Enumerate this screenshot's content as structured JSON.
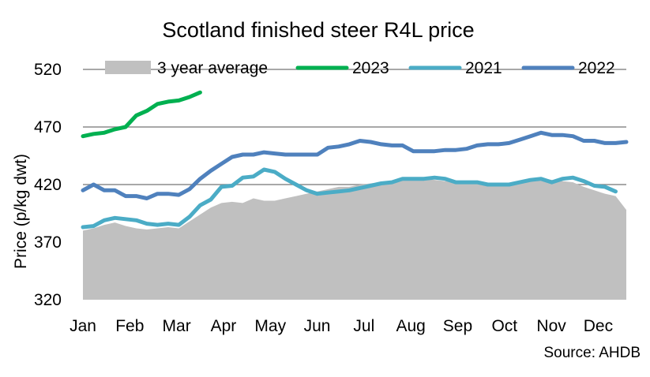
{
  "chart_data": {
    "type": "line",
    "title": "Scotland finished steer R4L price",
    "ylabel": "Price (p/kg dwt)",
    "xlabel": "",
    "ylim": [
      320,
      520
    ],
    "yticks": [
      320,
      370,
      420,
      470,
      520
    ],
    "grid": "horizontal",
    "legend_position": "top",
    "months": [
      "Jan",
      "Feb",
      "Mar",
      "Apr",
      "May",
      "Jun",
      "Jul",
      "Aug",
      "Sep",
      "Oct",
      "Nov",
      "Dec"
    ],
    "source": "Source: AHDB",
    "series": [
      {
        "name": "3 year average",
        "style": "area",
        "color": "#c0c0c0",
        "values": [
          380,
          382,
          385,
          387,
          384,
          382,
          381,
          382,
          383,
          382,
          388,
          394,
          400,
          404,
          405,
          404,
          408,
          406,
          406,
          408,
          410,
          412,
          414,
          416,
          418,
          418,
          420,
          421,
          422,
          423,
          424,
          425,
          425,
          424,
          423,
          423,
          422,
          422,
          420,
          420,
          420,
          422,
          424,
          426,
          424,
          423,
          422,
          418,
          415,
          412,
          410,
          398
        ]
      },
      {
        "name": "2023",
        "style": "line",
        "color": "#00b050",
        "values": [
          462,
          464,
          465,
          468,
          470,
          480,
          484,
          490,
          492,
          493,
          496,
          500
        ]
      },
      {
        "name": "2021",
        "style": "line",
        "color": "#4bacc6",
        "values": [
          383,
          384,
          389,
          391,
          390,
          389,
          386,
          385,
          386,
          385,
          392,
          402,
          407,
          418,
          419,
          426,
          427,
          433,
          431,
          425,
          420,
          415,
          412,
          413,
          414,
          415,
          417,
          419,
          421,
          422,
          425,
          425,
          425,
          426,
          425,
          422,
          422,
          422,
          420,
          420,
          420,
          422,
          424,
          425,
          422,
          425,
          426,
          423,
          419,
          418,
          414
        ]
      },
      {
        "name": "2022",
        "style": "line",
        "color": "#4f81bd",
        "values": [
          415,
          420,
          415,
          415,
          410,
          410,
          408,
          412,
          412,
          411,
          416,
          425,
          432,
          438,
          444,
          446,
          446,
          448,
          447,
          446,
          446,
          446,
          446,
          452,
          453,
          455,
          458,
          457,
          455,
          454,
          454,
          449,
          449,
          449,
          450,
          450,
          451,
          454,
          455,
          455,
          456,
          459,
          462,
          465,
          463,
          463,
          462,
          458,
          458,
          456,
          456,
          457
        ]
      }
    ]
  }
}
